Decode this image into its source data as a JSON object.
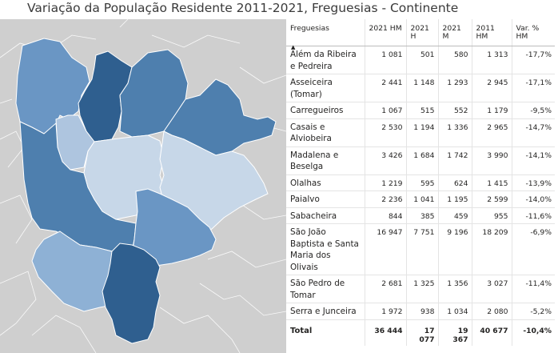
{
  "title": "Variação da População Residente 2011-2021, Freguesias - Continente",
  "colors": {
    "map_bg": "#cfcfcf",
    "dark": "#2f5f8f",
    "mid": "#4e7fae",
    "light": "#8eb1d5",
    "lighter": "#aec5df",
    "lightest": "#c7d7e8"
  },
  "table": {
    "headers": [
      "Freguesias",
      "2021 HM",
      "2021 H",
      "2021 M",
      "2011 HM",
      "Var. % HM"
    ],
    "rows": [
      [
        "Além da Ribeira e Pedreira",
        "1 081",
        "501",
        "580",
        "1 313",
        "-17,7%"
      ],
      [
        "Asseiceira (Tomar)",
        "2 441",
        "1 148",
        "1 293",
        "2 945",
        "-17,1%"
      ],
      [
        "Carregueiros",
        "1 067",
        "515",
        "552",
        "1 179",
        "-9,5%"
      ],
      [
        "Casais e Alviobeira",
        "2 530",
        "1 194",
        "1 336",
        "2 965",
        "-14,7%"
      ],
      [
        "Madalena e Beselga",
        "3 426",
        "1 684",
        "1 742",
        "3 990",
        "-14,1%"
      ],
      [
        "Olalhas",
        "1 219",
        "595",
        "624",
        "1 415",
        "-13,9%"
      ],
      [
        "Paialvo",
        "2 236",
        "1 041",
        "1 195",
        "2 599",
        "-14,0%"
      ],
      [
        "Sabacheira",
        "844",
        "385",
        "459",
        "955",
        "-11,6%"
      ],
      [
        "São João Baptista e Santa Maria dos Olivais",
        "16 947",
        "7 751",
        "9 196",
        "18 209",
        "-6,9%"
      ],
      [
        "São Pedro de Tomar",
        "2 681",
        "1 325",
        "1 356",
        "3 027",
        "-11,4%"
      ],
      [
        "Serra e Junceira",
        "1 972",
        "938",
        "1 034",
        "2 080",
        "-5,2%"
      ]
    ],
    "total": [
      "Total",
      "36 444",
      "17 077",
      "19 367",
      "40 677",
      "-10,4%"
    ]
  }
}
